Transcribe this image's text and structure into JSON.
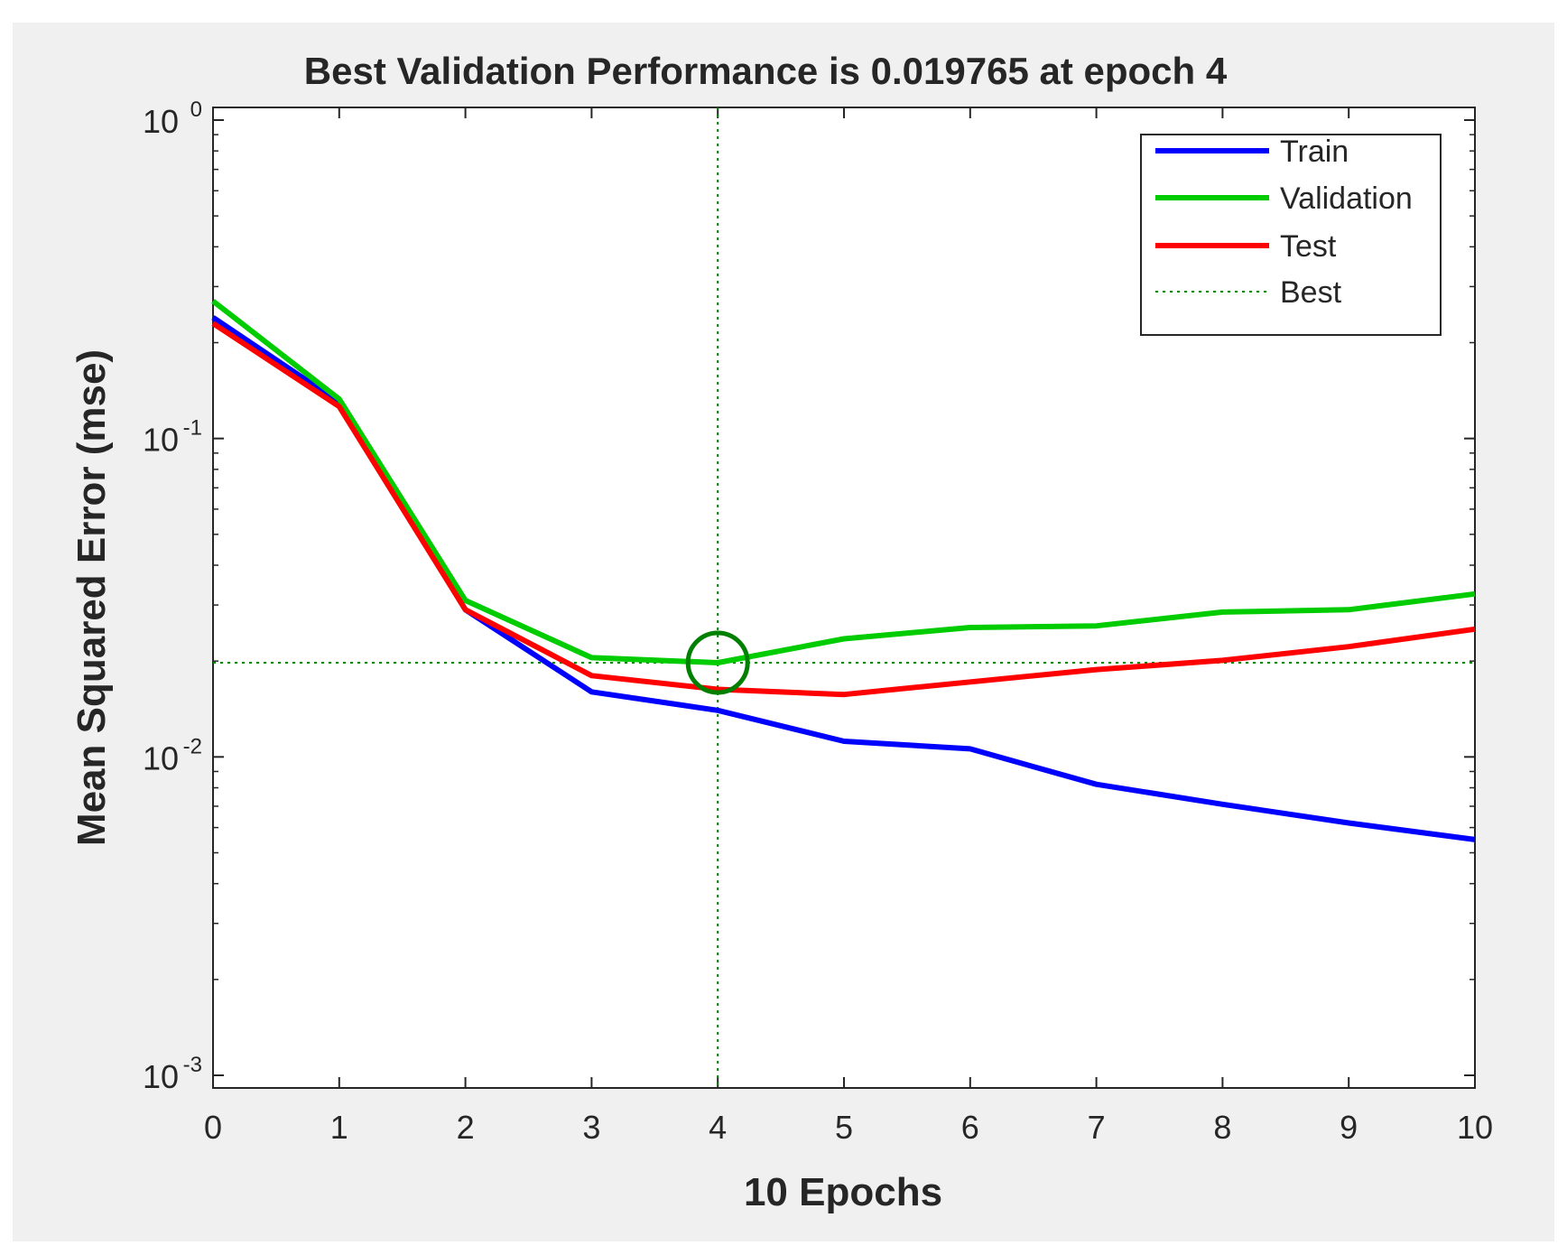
{
  "chart_data": {
    "type": "line",
    "title": "Best Validation Performance is 0.019765 at epoch 4",
    "xlabel": "10 Epochs",
    "ylabel": "Mean Squared Error  (mse)",
    "yscale": "log",
    "xlim": [
      0,
      10
    ],
    "ylim": [
      0.001,
      1
    ],
    "x": [
      0,
      1,
      2,
      3,
      4,
      5,
      6,
      7,
      8,
      9,
      10
    ],
    "x_ticks": [
      "0",
      "1",
      "2",
      "3",
      "4",
      "5",
      "6",
      "7",
      "8",
      "9",
      "10"
    ],
    "y_ticks": [
      {
        "value": 1,
        "base": "10",
        "exp": "0"
      },
      {
        "value": 0.1,
        "base": "10",
        "exp": "-1"
      },
      {
        "value": 0.01,
        "base": "10",
        "exp": "-2"
      },
      {
        "value": 0.001,
        "base": "10",
        "exp": "-3"
      }
    ],
    "series": [
      {
        "name": "Train",
        "color": "#0000ff",
        "values": [
          0.24,
          0.13,
          0.029,
          0.016,
          0.014,
          0.0112,
          0.0106,
          0.0082,
          0.0071,
          0.0062,
          0.0055
        ]
      },
      {
        "name": "Validation",
        "color": "#00cc00",
        "values": [
          0.27,
          0.133,
          0.031,
          0.0205,
          0.019765,
          0.0235,
          0.0255,
          0.0258,
          0.0285,
          0.029,
          0.0325
        ]
      },
      {
        "name": "Test",
        "color": "#ff0000",
        "values": [
          0.23,
          0.126,
          0.029,
          0.018,
          0.0163,
          0.0157,
          0.0172,
          0.0188,
          0.0201,
          0.0222,
          0.0252
        ]
      }
    ],
    "best": {
      "name": "Best",
      "epoch": 4,
      "value": 0.019765,
      "color": "#008000"
    },
    "legend": {
      "position": "top-right",
      "entries": [
        "Train",
        "Validation",
        "Test",
        "Best"
      ]
    }
  }
}
